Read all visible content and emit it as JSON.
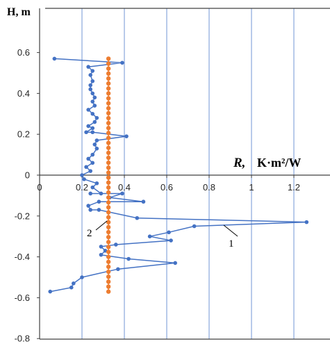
{
  "chart_data": {
    "type": "scatter",
    "ylabel": "H, m",
    "xlabel_symbol": "R,",
    "xlabel_units": "K·m²/W",
    "xlim": [
      0,
      1.4
    ],
    "ylim": [
      -0.8,
      0.7
    ],
    "x_ticks": [
      {
        "value": 0,
        "label": "0"
      },
      {
        "value": 0.2,
        "label": "0.2"
      },
      {
        "value": 0.4,
        "label": "0.4"
      },
      {
        "value": 0.6,
        "label": "0.6"
      },
      {
        "value": 0.8,
        "label": "0.8"
      },
      {
        "value": 1.0,
        "label": "1"
      },
      {
        "value": 1.2,
        "label": "1.2"
      }
    ],
    "y_ticks": [
      {
        "value": 0.6,
        "label": "0.6"
      },
      {
        "value": 0.4,
        "label": "0.4"
      },
      {
        "value": 0.2,
        "label": "0.2"
      },
      {
        "value": 0,
        "label": "0"
      },
      {
        "value": -0.2,
        "label": "-0.2"
      },
      {
        "value": -0.4,
        "label": "-0.4"
      },
      {
        "value": -0.6,
        "label": "-0.6"
      },
      {
        "value": -0.8,
        "label": "-0.8"
      }
    ],
    "grid": "vertical",
    "series": [
      {
        "name": "1",
        "color": "#4472c4",
        "points": [
          [
            0.07,
            0.57
          ],
          [
            0.39,
            0.55
          ],
          [
            0.23,
            0.53
          ],
          [
            0.25,
            0.51
          ],
          [
            0.24,
            0.49
          ],
          [
            0.25,
            0.46
          ],
          [
            0.24,
            0.44
          ],
          [
            0.24,
            0.42
          ],
          [
            0.25,
            0.4
          ],
          [
            0.26,
            0.38
          ],
          [
            0.25,
            0.36
          ],
          [
            0.26,
            0.34
          ],
          [
            0.23,
            0.32
          ],
          [
            0.25,
            0.3
          ],
          [
            0.27,
            0.28
          ],
          [
            0.26,
            0.26
          ],
          [
            0.23,
            0.24
          ],
          [
            0.25,
            0.23
          ],
          [
            0.22,
            0.21
          ],
          [
            0.25,
            0.21
          ],
          [
            0.41,
            0.19
          ],
          [
            0.27,
            0.17
          ],
          [
            0.26,
            0.15
          ],
          [
            0.27,
            0.13
          ],
          [
            0.25,
            0.1
          ],
          [
            0.23,
            0.08
          ],
          [
            0.25,
            0.06
          ],
          [
            0.22,
            0.04
          ],
          [
            0.24,
            0.02
          ],
          [
            0.2,
            0.0
          ],
          [
            0.21,
            -0.02
          ],
          [
            0.27,
            -0.04
          ],
          [
            0.25,
            -0.06
          ],
          [
            0.29,
            -0.09
          ],
          [
            0.24,
            -0.09
          ],
          [
            0.39,
            -0.09
          ],
          [
            0.33,
            -0.11
          ],
          [
            0.49,
            -0.13
          ],
          [
            0.28,
            -0.13
          ],
          [
            0.23,
            -0.15
          ],
          [
            0.24,
            -0.17
          ],
          [
            0.28,
            -0.17
          ],
          [
            0.46,
            -0.21
          ],
          [
            1.26,
            -0.23
          ],
          [
            0.73,
            -0.25
          ],
          [
            0.61,
            -0.28
          ],
          [
            0.52,
            -0.3
          ],
          [
            0.62,
            -0.32
          ],
          [
            0.36,
            -0.34
          ],
          [
            0.29,
            -0.35
          ],
          [
            0.31,
            -0.37
          ],
          [
            0.29,
            -0.39
          ],
          [
            0.42,
            -0.41
          ],
          [
            0.64,
            -0.43
          ],
          [
            0.37,
            -0.46
          ],
          [
            0.2,
            -0.5
          ],
          [
            0.16,
            -0.53
          ],
          [
            0.15,
            -0.55
          ],
          [
            0.05,
            -0.57
          ]
        ]
      },
      {
        "name": "2",
        "color": "#ed7d31",
        "x_constant": 0.325,
        "y_range": [
          -0.57,
          0.57
        ],
        "point_count": 48
      }
    ],
    "annotations": [
      {
        "text": "1",
        "series": "1",
        "x": 0.78,
        "y": -0.32
      },
      {
        "text": "2",
        "series": "2",
        "x": 0.27,
        "y": -0.28
      }
    ]
  }
}
